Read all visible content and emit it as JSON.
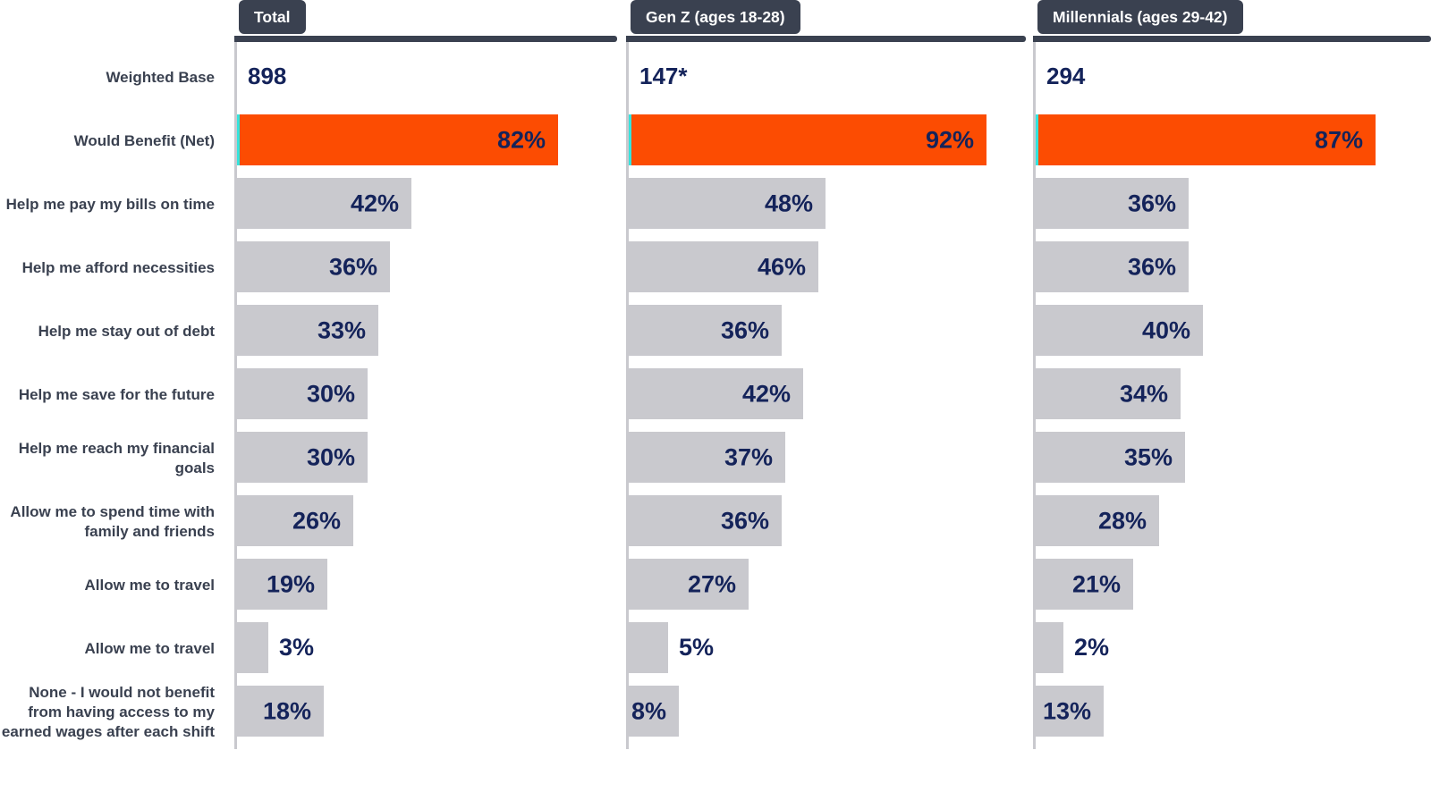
{
  "chart_data": {
    "type": "bar",
    "orientation": "horizontal",
    "unit": "%",
    "groups": [
      "Total",
      "Gen Z (ages 18-28)",
      "Millennials (ages 29-42)"
    ],
    "base_label": "Weighted Base",
    "weighted_base": [
      "898",
      "147*",
      "294"
    ],
    "categories": [
      "Would Benefit (Net)",
      "Help me pay my bills on time",
      "Help me afford necessities",
      "Help me stay out of debt",
      "Help me save for the future",
      "Help me reach my financial goals",
      "Allow me to spend time with family and friends",
      "Allow me to travel",
      "Allow me to travel",
      "None - I would not benefit from having access to my earned wages after each shift"
    ],
    "series": [
      {
        "name": "Total",
        "values": [
          82,
          42,
          36,
          33,
          30,
          30,
          26,
          19,
          3,
          18
        ]
      },
      {
        "name": "Gen Z (ages 18-28)",
        "values": [
          92,
          48,
          46,
          36,
          42,
          37,
          36,
          27,
          5,
          8
        ]
      },
      {
        "name": "Millennials (ages 29-42)",
        "values": [
          87,
          36,
          36,
          40,
          34,
          35,
          28,
          21,
          2,
          13
        ]
      }
    ],
    "highlight_category": "Would Benefit (Net)",
    "xlim": [
      0,
      100
    ],
    "grid": false,
    "legend_position": "none"
  },
  "colors": {
    "highlight_orange": "#FC4C02",
    "bar_gray": "#C9C9CE",
    "value_navy": "#14235A",
    "header_slate": "#3A4150",
    "teal_accent": "#35E3DC",
    "axis_gray": "#C9C9CE",
    "label_text": "#3A4150",
    "tab_text": "#FFFFFF"
  }
}
